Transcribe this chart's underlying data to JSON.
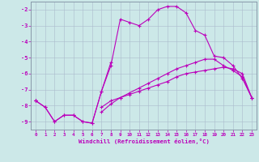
{
  "xlabel": "Windchill (Refroidissement éolien,°C)",
  "background_color": "#cce8e8",
  "grid_color": "#aabbcc",
  "line_color": "#bb00bb",
  "x_values": [
    0,
    1,
    2,
    3,
    4,
    5,
    6,
    7,
    8,
    9,
    10,
    11,
    12,
    13,
    14,
    15,
    16,
    17,
    18,
    19,
    20,
    21,
    22,
    23
  ],
  "line1": [
    -7.7,
    -8.1,
    -9.0,
    -8.6,
    -8.6,
    -9.0,
    -9.1,
    -7.1,
    -5.3,
    null,
    null,
    null,
    null,
    null,
    null,
    null,
    null,
    null,
    null,
    null,
    null,
    null,
    null,
    null
  ],
  "line2": [
    -7.7,
    null,
    null,
    null,
    null,
    null,
    null,
    -8.1,
    -7.7,
    -7.5,
    -7.3,
    -7.1,
    -6.9,
    -6.7,
    -6.5,
    -6.2,
    -6.0,
    -5.9,
    -5.8,
    -5.7,
    -5.6,
    -5.7,
    -6.0,
    -7.5
  ],
  "line3": [
    -7.7,
    null,
    null,
    null,
    null,
    null,
    null,
    -8.4,
    -7.9,
    -7.5,
    -7.2,
    -6.9,
    -6.6,
    -6.3,
    -6.0,
    -5.7,
    -5.5,
    -5.3,
    -5.1,
    -5.1,
    -5.5,
    -5.8,
    -6.2,
    -7.5
  ],
  "line4": [
    -7.7,
    -8.1,
    -9.0,
    -8.6,
    -8.6,
    -9.0,
    -9.1,
    -7.1,
    -5.5,
    -2.6,
    -2.8,
    -3.0,
    -2.6,
    -2.0,
    -1.8,
    -1.8,
    -2.2,
    -3.3,
    -3.6,
    -4.9,
    -5.0,
    -5.5,
    -6.3,
    -7.5
  ],
  "ylim": [
    -9.5,
    -1.5
  ],
  "xlim": [
    -0.5,
    23.5
  ],
  "yticks": [
    -9,
    -8,
    -7,
    -6,
    -5,
    -4,
    -3,
    -2
  ],
  "xticks": [
    0,
    1,
    2,
    3,
    4,
    5,
    6,
    7,
    8,
    9,
    10,
    11,
    12,
    13,
    14,
    15,
    16,
    17,
    18,
    19,
    20,
    21,
    22,
    23
  ]
}
